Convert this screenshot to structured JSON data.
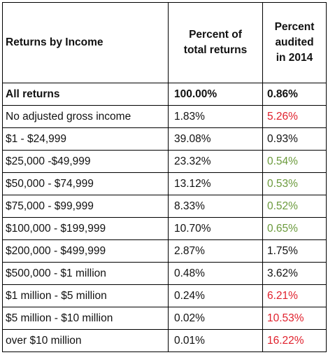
{
  "table": {
    "header": [
      "Returns by Income",
      [
        "Percent of",
        "total returns"
      ],
      [
        "Percent",
        "audited",
        "in 2014"
      ]
    ],
    "rows": [
      {
        "label": "All returns",
        "share": "100.00%",
        "audited": "0.86%",
        "color": "#111111"
      },
      {
        "label": "No adjusted gross income",
        "share": "1.83%",
        "audited": "5.26%",
        "color": "#e0202c"
      },
      {
        "label": "$1 - $24,999",
        "share": "39.08%",
        "audited": "0.93%",
        "color": "#111111"
      },
      {
        "label": "$25,000  -$49,999",
        "share": "23.32%",
        "audited": "0.54%",
        "color": "#6b9a3c"
      },
      {
        "label": "$50,000 - $74,999",
        "share": "13.12%",
        "audited": "0.53%",
        "color": "#6b9a3c"
      },
      {
        "label": "$75,000 - $99,999",
        "share": "8.33%",
        "audited": "0.52%",
        "color": "#6b9a3c"
      },
      {
        "label": "$100,000 - $199,999",
        "share": "10.70%",
        "audited": "0.65%",
        "color": "#6b9a3c"
      },
      {
        "label": "$200,000 - $499,999",
        "share": "2.87%",
        "audited": "1.75%",
        "color": "#111111"
      },
      {
        "label": "$500,000 - $1 million",
        "share": "0.48%",
        "audited": "3.62%",
        "color": "#111111"
      },
      {
        "label": "$1 million - $5 million",
        "share": "0.24%",
        "audited": "6.21%",
        "color": "#e0202c"
      },
      {
        "label": "$5 million - $10 million",
        "share": "0.02%",
        "audited": "10.53%",
        "color": "#e0202c"
      },
      {
        "label": "over $10 million",
        "share": "0.01%",
        "audited": "16.22%",
        "color": "#e0202c"
      }
    ]
  }
}
